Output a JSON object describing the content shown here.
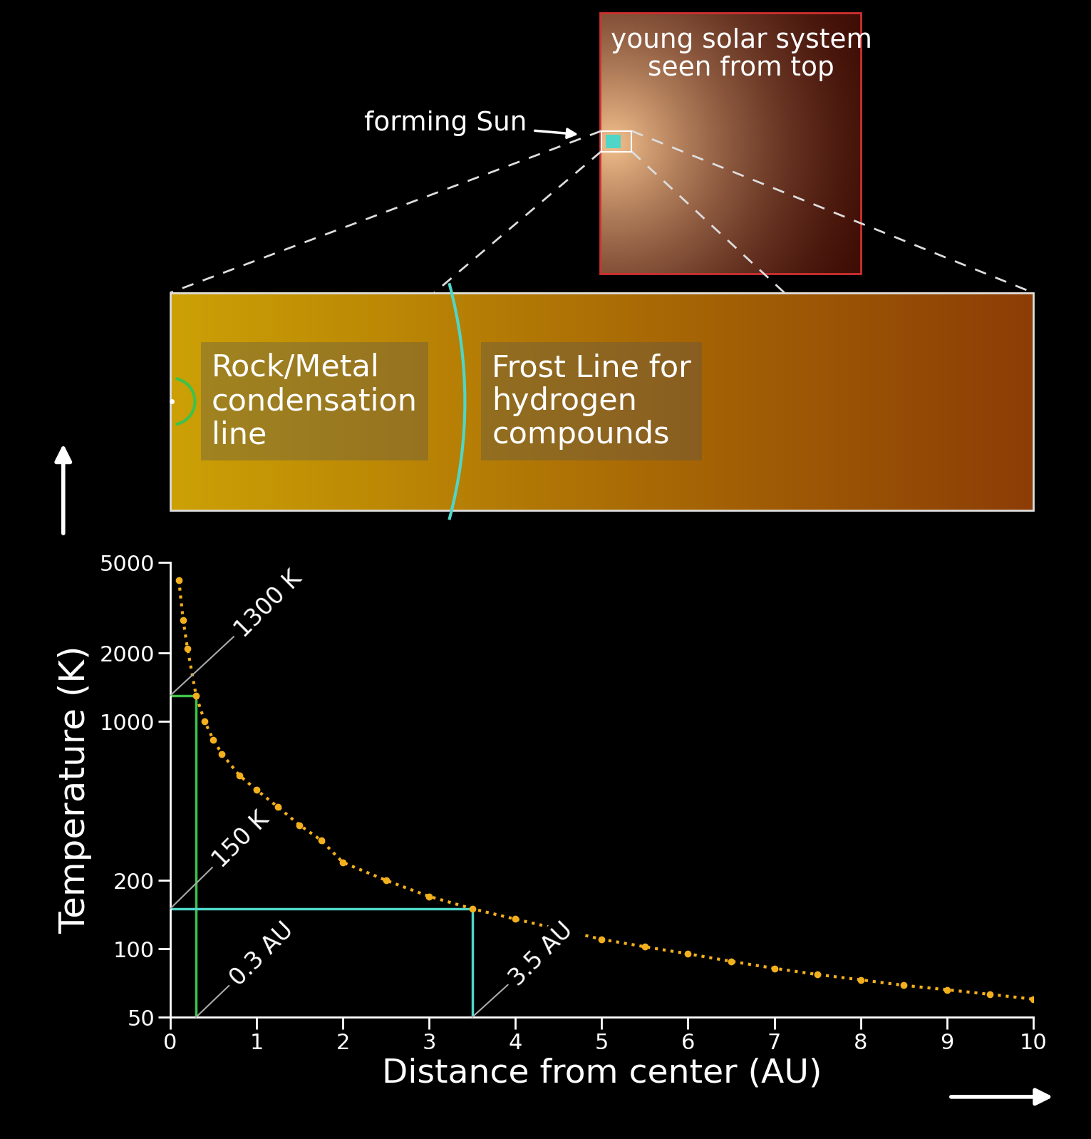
{
  "chart_data": {
    "type": "line",
    "x": [
      0.1,
      0.15,
      0.2,
      0.3,
      0.4,
      0.5,
      0.6,
      0.8,
      1.0,
      1.25,
      1.5,
      1.75,
      2.0,
      2.5,
      3.0,
      3.5,
      4.0,
      4.5,
      5.0,
      5.5,
      6.0,
      6.5,
      7.0,
      7.5,
      8.0,
      8.5,
      9.0,
      9.5,
      10.0
    ],
    "values": [
      4200,
      2800,
      2100,
      1300,
      1000,
      830,
      720,
      580,
      500,
      420,
      350,
      300,
      240,
      200,
      170,
      150,
      135,
      122,
      110,
      102,
      95,
      88,
      82,
      77,
      73,
      69,
      66,
      63,
      60
    ],
    "color": "#f2b01e",
    "marker": "o",
    "line_style": "dotted",
    "xlabel": "Distance from center (AU)",
    "ylabel": "Temperature (K)",
    "xlim": [
      0,
      10
    ],
    "ylim": [
      50,
      5000
    ],
    "xticks": [
      0,
      1,
      2,
      3,
      4,
      5,
      6,
      7,
      8,
      9,
      10
    ],
    "yticks": [
      50,
      100,
      200,
      1000,
      2000,
      5000
    ],
    "log": "y",
    "annotations": [
      {
        "x": 0.3,
        "y": 1300,
        "x_label": "0.3 AU",
        "y_label": "1300 K",
        "color": "#3ec24a"
      },
      {
        "x": 3.5,
        "y": 150,
        "x_label": "3.5 AU",
        "y_label": "150 K",
        "color": "#4fd6c8"
      }
    ]
  },
  "diagram": {
    "box_title": "young solar system\nseen from top",
    "sun_label": "forming Sun",
    "zoom_labels": [
      {
        "text": "Rock/Metal\ncondensation\nline",
        "color": "#3ec24a"
      },
      {
        "text": "Frost Line for\nhydrogen\ncompounds",
        "color": "#4fd6c8"
      }
    ]
  }
}
